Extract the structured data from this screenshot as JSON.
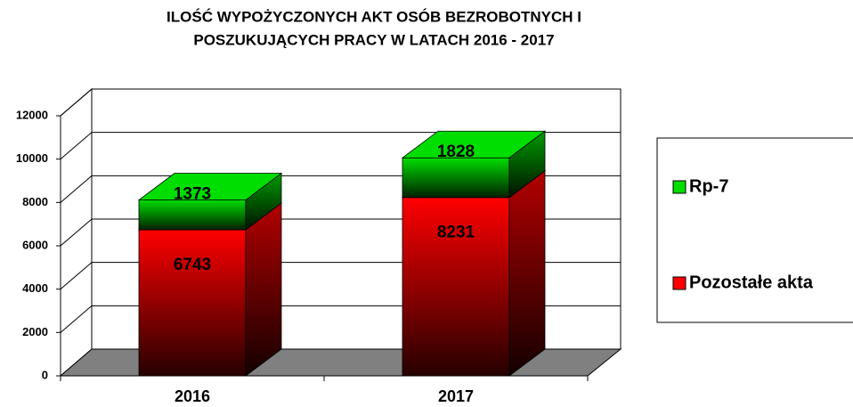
{
  "chart_data": {
    "type": "bar3d_stacked",
    "title": [
      "ILOŚĆ WYPOŻYCZONYCH AKT OSÓB BEZROBOTNYCH I",
      "POSZUKUJĄCYCH PRACY W LATACH 2016 - 2017"
    ],
    "categories": [
      "2016",
      "2017"
    ],
    "series": [
      {
        "name": "Pozostałe akta",
        "color": "#ff0000",
        "values": [
          6743,
          8231
        ]
      },
      {
        "name": "Rp-7",
        "color": "#00dd00",
        "values": [
          1373,
          1828
        ]
      }
    ],
    "ylim": [
      0,
      12000
    ],
    "yticks": [
      0,
      2000,
      4000,
      6000,
      8000,
      10000,
      12000
    ],
    "grid": true,
    "legend": "right"
  }
}
